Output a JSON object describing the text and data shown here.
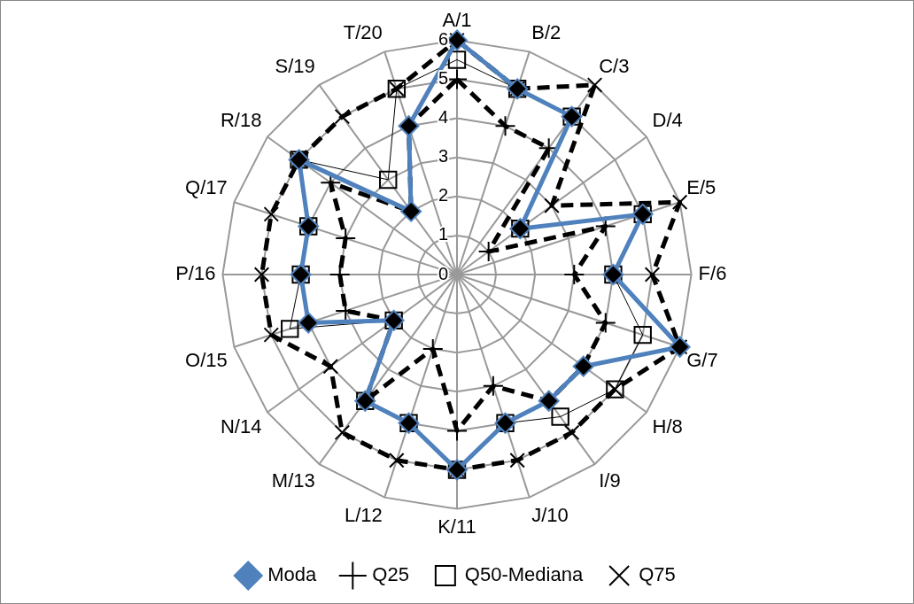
{
  "chart_data": {
    "type": "radar",
    "categories": [
      "A/1",
      "B/2",
      "C/3",
      "D/4",
      "E/5",
      "F/6",
      "G/7",
      "H/8",
      "I/9",
      "J/10",
      "K/11",
      "L/12",
      "M/13",
      "N/14",
      "O/15",
      "P/16",
      "Q/17",
      "R/18",
      "S/19",
      "T/20"
    ],
    "series": [
      {
        "name": "Moda",
        "color": "#4f81bd",
        "marker": "diamond",
        "line_style": "solid",
        "values": [
          6,
          5,
          5,
          2,
          5,
          4,
          6,
          4,
          4,
          4,
          5,
          4,
          4,
          2,
          4,
          4,
          4,
          5,
          2,
          4
        ]
      },
      {
        "name": "Q25",
        "color": "#000000",
        "marker": "cross",
        "line_style": "dashed",
        "values": [
          5,
          4,
          4,
          1,
          4,
          3,
          4,
          4,
          4,
          3,
          4,
          2,
          4,
          2,
          3,
          3,
          3,
          4,
          2,
          4
        ]
      },
      {
        "name": "Q50-Mediana",
        "color": "#000000",
        "marker": "square",
        "line_style": "solid",
        "values": [
          5.5,
          5,
          5,
          2,
          5,
          4,
          5,
          5,
          4.5,
          4,
          5,
          4,
          4,
          2,
          4.5,
          4,
          4,
          5,
          3,
          5
        ]
      },
      {
        "name": "Q75",
        "color": "#000000",
        "marker": "x",
        "line_style": "dashed",
        "values": [
          6,
          5,
          6,
          3,
          6,
          5,
          6,
          5,
          5,
          5,
          5,
          5,
          5,
          4,
          5,
          5,
          5,
          5,
          5,
          5
        ]
      }
    ],
    "ylim": [
      0,
      6
    ],
    "yticks": [
      0,
      1,
      2,
      3,
      4,
      5,
      6
    ],
    "grid": true,
    "legend": "bottom"
  }
}
